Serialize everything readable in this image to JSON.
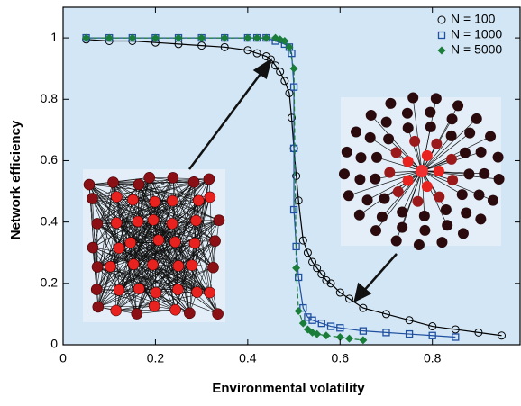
{
  "chart_data": {
    "type": "scatter",
    "xlabel": "Environmental volatility",
    "ylabel": "Network efficiency",
    "xlim": [
      0,
      0.99
    ],
    "ylim": [
      0,
      1.1
    ],
    "xticks": [
      0,
      0.2,
      0.4,
      0.6,
      0.8
    ],
    "yticks": [
      0,
      0.2,
      0.4,
      0.6,
      0.8,
      1
    ],
    "legend": "upper right",
    "line": true,
    "series": [
      {
        "name": "N = 100",
        "color": "#000000",
        "marker": "circle",
        "x": [
          0.05,
          0.1,
          0.15,
          0.2,
          0.25,
          0.3,
          0.35,
          0.4,
          0.42,
          0.44,
          0.45,
          0.46,
          0.47,
          0.48,
          0.49,
          0.495,
          0.5,
          0.505,
          0.51,
          0.52,
          0.53,
          0.54,
          0.55,
          0.56,
          0.57,
          0.58,
          0.6,
          0.62,
          0.65,
          0.7,
          0.75,
          0.8,
          0.85,
          0.9,
          0.95
        ],
        "values": [
          0.995,
          0.99,
          0.99,
          0.985,
          0.98,
          0.975,
          0.97,
          0.96,
          0.95,
          0.94,
          0.93,
          0.91,
          0.89,
          0.86,
          0.82,
          0.74,
          0.64,
          0.55,
          0.47,
          0.34,
          0.3,
          0.27,
          0.25,
          0.23,
          0.21,
          0.2,
          0.17,
          0.15,
          0.12,
          0.1,
          0.08,
          0.06,
          0.05,
          0.04,
          0.03
        ]
      },
      {
        "name": "N = 1000",
        "color": "#1f4fa0",
        "marker": "square",
        "x": [
          0.05,
          0.1,
          0.15,
          0.2,
          0.25,
          0.3,
          0.35,
          0.4,
          0.42,
          0.44,
          0.46,
          0.48,
          0.49,
          0.495,
          0.5,
          0.5,
          0.5,
          0.505,
          0.51,
          0.52,
          0.53,
          0.54,
          0.56,
          0.58,
          0.6,
          0.65,
          0.7,
          0.75,
          0.8,
          0.85
        ],
        "values": [
          1,
          1,
          1,
          1,
          1,
          1,
          1,
          1,
          1,
          1,
          0.99,
          0.98,
          0.97,
          0.95,
          0.84,
          0.64,
          0.44,
          0.32,
          0.22,
          0.12,
          0.09,
          0.08,
          0.07,
          0.06,
          0.055,
          0.045,
          0.04,
          0.035,
          0.03,
          0.025
        ]
      },
      {
        "name": "N = 5000",
        "color": "#1b7d3a",
        "marker": "diamond",
        "x": [
          0.05,
          0.1,
          0.15,
          0.2,
          0.25,
          0.3,
          0.35,
          0.4,
          0.42,
          0.44,
          0.46,
          0.47,
          0.48,
          0.49,
          0.5,
          0.505,
          0.51,
          0.52,
          0.53,
          0.54,
          0.55,
          0.57,
          0.6,
          0.62,
          0.65
        ],
        "values": [
          1,
          1,
          1,
          1,
          1,
          1,
          1,
          1,
          1,
          1,
          1,
          0.995,
          0.99,
          0.97,
          0.9,
          0.25,
          0.11,
          0.07,
          0.05,
          0.04,
          0.035,
          0.03,
          0.025,
          0.02,
          0.015
        ]
      }
    ]
  }
}
